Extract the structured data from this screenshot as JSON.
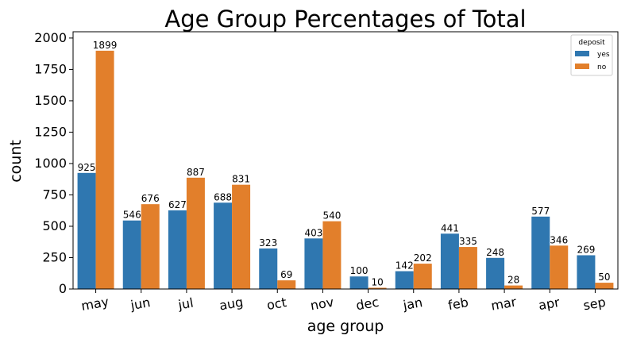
{
  "chart_data": {
    "type": "bar",
    "title": "Age Group Percentages of Total",
    "xlabel": "age group",
    "ylabel": "count",
    "categories": [
      "may",
      "jun",
      "jul",
      "aug",
      "oct",
      "nov",
      "dec",
      "jan",
      "feb",
      "mar",
      "apr",
      "sep"
    ],
    "series": [
      {
        "name": "yes",
        "color": "#2f77b0",
        "values": [
          925,
          546,
          627,
          688,
          323,
          403,
          100,
          142,
          441,
          248,
          577,
          269
        ]
      },
      {
        "name": "no",
        "color": "#e27f2b",
        "values": [
          1899,
          676,
          887,
          831,
          69,
          540,
          10,
          202,
          335,
          28,
          346,
          50
        ]
      }
    ],
    "ylim": [
      0,
      2050
    ],
    "yticks": [
      0,
      250,
      500,
      750,
      1000,
      1250,
      1500,
      1750,
      2000
    ],
    "legend": {
      "title": "deposit",
      "placement": "top-right"
    },
    "grid": false
  }
}
